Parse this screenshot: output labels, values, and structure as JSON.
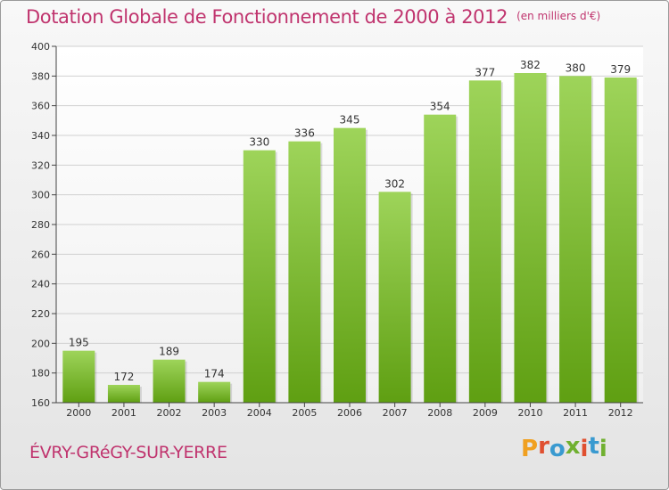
{
  "header": {
    "title": "Dotation Globale de Fonctionnement de 2000 à 2012",
    "unit_note": "(en milliers d'€)"
  },
  "footer": {
    "commune": "ÉVRY-GRéGY-SUR-YERRE",
    "logo_text": "Proxiti",
    "logo_colors": [
      "#f0a020",
      "#e05030",
      "#3a9ad0",
      "#70b030",
      "#e05030",
      "#3a9ad0",
      "#70b030"
    ]
  },
  "chart_data": {
    "type": "bar",
    "title": "Dotation Globale de Fonctionnement de 2000 à 2012",
    "subtitle": "(en milliers d'€)",
    "categories": [
      "2000",
      "2001",
      "2002",
      "2003",
      "2004",
      "2005",
      "2006",
      "2007",
      "2008",
      "2009",
      "2010",
      "2011",
      "2012"
    ],
    "values": [
      195,
      172,
      189,
      174,
      330,
      336,
      345,
      302,
      354,
      377,
      382,
      380,
      379
    ],
    "ylim": [
      160,
      400
    ],
    "yticks": [
      160,
      180,
      200,
      220,
      240,
      260,
      280,
      300,
      320,
      340,
      360,
      380,
      400
    ],
    "grid": true,
    "data_labels": true,
    "colors": {
      "bar_top": "#9ed45a",
      "bar_bottom": "#5f9f12",
      "grid": "#d0d0d0",
      "axis": "#444444"
    }
  }
}
